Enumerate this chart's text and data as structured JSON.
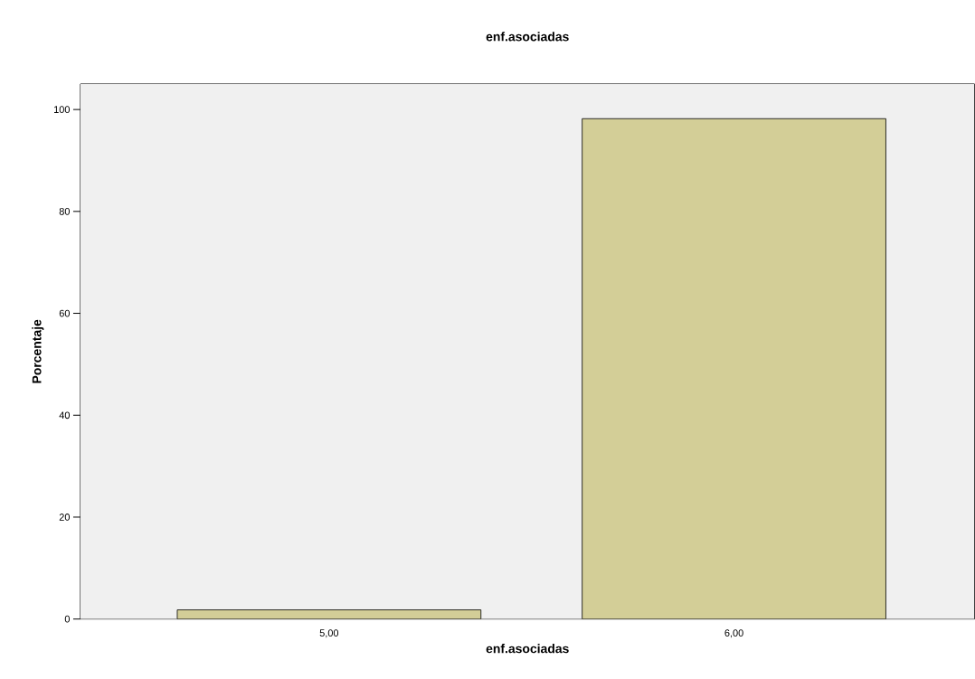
{
  "chart_data": {
    "type": "bar",
    "title": "enf.asociadas",
    "xlabel": "enf.asociadas",
    "ylabel": "Porcentaje",
    "categories": [
      "5,00",
      "6,00"
    ],
    "values": [
      1.8,
      98.2
    ],
    "color": "#d3ce97",
    "ylim": [
      0,
      105
    ],
    "yticks": [
      0,
      20,
      40,
      60,
      80,
      100
    ]
  }
}
